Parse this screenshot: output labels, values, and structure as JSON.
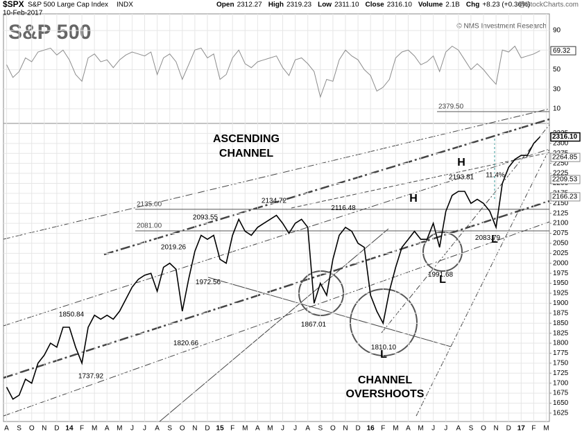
{
  "chart_data": {
    "type": "line",
    "symbol": "$SPX",
    "name": "S&P 500 Large Cap Index",
    "exchange": "INDX",
    "date": "10-Feb-2017",
    "quote": [
      {
        "label": "Open",
        "text": "2312.27"
      },
      {
        "label": "High",
        "text": "2319.23"
      },
      {
        "label": "Low",
        "text": "2311.10"
      },
      {
        "label": "Close",
        "text": "2316.10"
      },
      {
        "label": "Volume",
        "text": "2.1B"
      },
      {
        "label": "Chg",
        "text": "+8.23 (+0.36%)"
      }
    ],
    "source": "@StockCharts.com",
    "title": "S&P 500",
    "credit": "© NMS Investment Research",
    "channel_label": [
      "ASCENDING",
      "CHANNEL"
    ],
    "overshoot_label": [
      "CHANNEL",
      "OVERSHOOTS"
    ],
    "marks": [
      "H",
      "H",
      "L",
      "L",
      "L"
    ],
    "gain_label": "11.4%",
    "categories": [
      "A",
      null,
      "S",
      null,
      "O",
      null,
      "N",
      null,
      "D",
      null,
      "14",
      null,
      "F",
      null,
      "M",
      null,
      "A",
      null,
      "M",
      null,
      "J",
      null,
      "J",
      null,
      "A",
      null,
      "S",
      null,
      "O",
      null,
      "N",
      null,
      "D",
      null,
      "15",
      null,
      "F",
      null,
      "M",
      null,
      "A",
      null,
      "M",
      null,
      "J",
      null,
      "J",
      null,
      "A",
      null,
      "S",
      null,
      "O",
      null,
      "N",
      null,
      "D",
      null,
      "16",
      null,
      "F",
      null,
      "M",
      null,
      "A",
      null,
      "M",
      null,
      "J",
      null,
      "J",
      null,
      "A",
      null,
      "S",
      null,
      "O",
      null,
      "N",
      null,
      "D",
      null,
      "17",
      null,
      "F",
      null,
      "M"
    ],
    "series": [
      {
        "name": "Price",
        "color": "#000000",
        "values": [
          1690,
          1660,
          1670,
          1710,
          1700,
          1750,
          1770,
          1800,
          1790,
          1840,
          1840,
          1790,
          1750,
          1840,
          1870,
          1860,
          1870,
          1860,
          1880,
          1910,
          1940,
          1960,
          1970,
          1975,
          1930,
          1990,
          2000,
          1985,
          1880,
          1960,
          2030,
          2070,
          2060,
          2070,
          2010,
          2000,
          2070,
          2110,
          2080,
          2070,
          2090,
          2100,
          2110,
          2120,
          2100,
          2075,
          2100,
          2110,
          2090,
          1900,
          1950,
          1920,
          2010,
          2070,
          2090,
          2080,
          2050,
          2040,
          1920,
          1880,
          1850,
          1930,
          1990,
          2040,
          2060,
          2080,
          2060,
          2060,
          2100,
          2040,
          2130,
          2170,
          2180,
          2180,
          2150,
          2160,
          2150,
          2130,
          2090,
          2200,
          2240,
          2260,
          2270,
          2270,
          2300,
          2316.1,
          null
        ]
      },
      {
        "name": "RSI",
        "color": "#8c8c8c",
        "axis": "y2",
        "values": [
          55,
          42,
          48,
          62,
          58,
          68,
          70,
          72,
          65,
          70,
          60,
          45,
          38,
          62,
          66,
          58,
          60,
          52,
          60,
          65,
          68,
          66,
          64,
          68,
          45,
          62,
          66,
          58,
          40,
          55,
          70,
          72,
          62,
          66,
          40,
          45,
          62,
          70,
          56,
          52,
          58,
          60,
          62,
          64,
          52,
          44,
          60,
          62,
          56,
          48,
          22,
          40,
          38,
          60,
          70,
          64,
          60,
          50,
          44,
          28,
          32,
          40,
          62,
          68,
          70,
          64,
          55,
          58,
          64,
          48,
          68,
          74,
          70,
          60,
          50,
          56,
          50,
          42,
          35,
          70,
          68,
          74,
          62,
          64,
          66,
          69.32,
          null
        ]
      }
    ],
    "ylim": [
      1604,
      2350
    ],
    "yticks": [
      1625,
      1650,
      1675,
      1700,
      1725,
      1750,
      1775,
      1800,
      1825,
      1850,
      1875,
      1900,
      1925,
      1950,
      1975,
      2000,
      2025,
      2050,
      2075,
      2100,
      2125,
      2150,
      2175,
      2200,
      2225,
      2250,
      2275,
      2300,
      2325
    ],
    "y2lim": [
      -5,
      107
    ],
    "y2ticks": [
      10,
      30,
      50,
      70,
      90
    ],
    "levels": [
      {
        "value": 2379.5,
        "label": "2379.50"
      },
      {
        "value": 2135,
        "label": "2135.00"
      },
      {
        "value": 2081,
        "label": "2081.00"
      }
    ],
    "price_labels": [
      {
        "value": 2134.72,
        "label": "2134.72"
      },
      {
        "value": 2116.48,
        "label": "2116.48"
      },
      {
        "value": 2093.55,
        "label": "2093.55"
      },
      {
        "value": 2019.26,
        "label": "2019.26"
      },
      {
        "value": 1972.56,
        "label": "1972.56"
      },
      {
        "value": 1850.84,
        "label": "1850.84"
      },
      {
        "value": 1820.66,
        "label": "1820.66"
      },
      {
        "value": 1737.92,
        "label": "1737.92"
      },
      {
        "value": 1867.01,
        "label": "1867.01"
      },
      {
        "value": 1810.1,
        "label": "1810.10"
      },
      {
        "value": 1991.68,
        "label": "1991.68"
      },
      {
        "value": 2083.79,
        "label": "2083.79"
      },
      {
        "value": 2193.81,
        "label": "2193.81"
      }
    ],
    "value_tags": [
      {
        "value": 2316.1,
        "label": "2316.10"
      },
      {
        "value": 2264.85,
        "label": "2264.85"
      },
      {
        "value": 2209.53,
        "label": "2209.53"
      },
      {
        "value": 2166.23,
        "label": "2166.23"
      }
    ],
    "grid": true
  }
}
